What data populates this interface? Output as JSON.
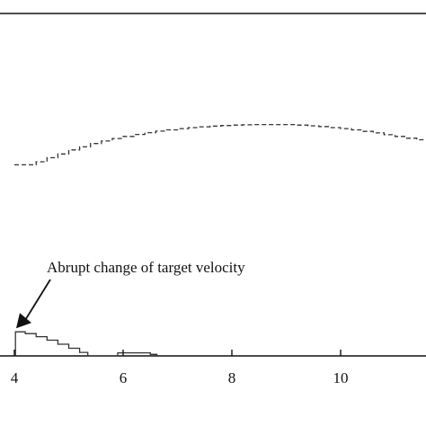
{
  "chart_data": {
    "type": "line",
    "title": "",
    "xlabel": "",
    "ylabel": "",
    "xlim": [
      4,
      11.7
    ],
    "ylim": [
      0,
      1
    ],
    "grid": false,
    "x_ticks": [
      4,
      6,
      8,
      10
    ],
    "x_tick_labels": [
      "4",
      "6",
      "8",
      "10"
    ],
    "series": [
      {
        "style": "dashed-staircase",
        "color": "#333333",
        "x": [
          4.0,
          4.2,
          4.4,
          4.6,
          4.8,
          5.0,
          5.2,
          5.4,
          5.6,
          5.8,
          6.0,
          6.2,
          6.4,
          6.6,
          6.8,
          7.0,
          7.2,
          7.4,
          7.6,
          7.8,
          8.0,
          8.2,
          8.4,
          8.6,
          8.8,
          9.0,
          9.2,
          9.4,
          9.6,
          9.8,
          10.0,
          10.2,
          10.4,
          10.6,
          10.8,
          11.0,
          11.2,
          11.4,
          11.6
        ],
        "y": [
          0.754,
          0.754,
          0.766,
          0.782,
          0.797,
          0.813,
          0.825,
          0.838,
          0.848,
          0.858,
          0.866,
          0.874,
          0.881,
          0.887,
          0.892,
          0.897,
          0.901,
          0.904,
          0.907,
          0.909,
          0.911,
          0.912,
          0.913,
          0.913,
          0.913,
          0.913,
          0.911,
          0.908,
          0.905,
          0.901,
          0.897,
          0.892,
          0.886,
          0.88,
          0.873,
          0.866,
          0.859,
          0.853,
          0.848
        ]
      },
      {
        "style": "staircase",
        "color": "#333333",
        "x": [
          4.0,
          4.02,
          4.2,
          4.4,
          4.6,
          4.8,
          5.0,
          5.2,
          5.35,
          5.5,
          5.7,
          5.9,
          6.1,
          6.3,
          6.5,
          6.62
        ],
        "y": [
          0.0,
          0.095,
          0.088,
          0.076,
          0.062,
          0.046,
          0.03,
          0.014,
          0.0,
          0.0,
          0.0,
          0.012,
          0.012,
          0.012,
          0.006,
          0.0
        ]
      }
    ],
    "annotations": [
      {
        "text": "Abrupt change of target velocity",
        "arrow_to": [
          4.0,
          0.095
        ]
      }
    ]
  }
}
